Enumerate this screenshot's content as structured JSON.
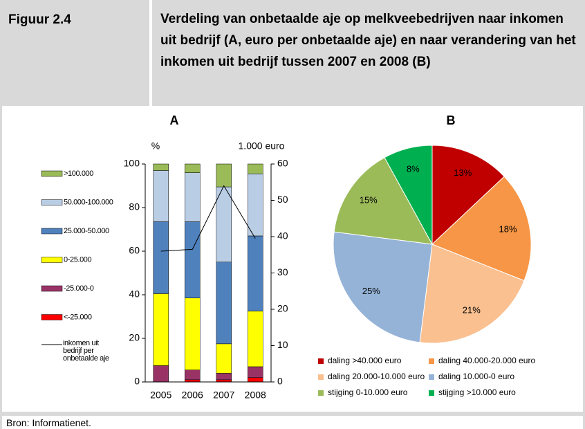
{
  "header": {
    "label": "Figuur 2.4",
    "title": "Verdeling van onbetaalde aje op melkveebedrijven naar inkomen uit bedrijf (A, euro per onbetaalde aje) en naar verandering van het inkomen uit bedrijf tussen 2007 en 2008 (B)"
  },
  "chart_data": [
    {
      "type": "bar",
      "stacked": true,
      "title": "A",
      "y_label": "%",
      "y2_label": "1.000 euro",
      "categories": [
        "2005",
        "2006",
        "2007",
        "2008"
      ],
      "ylim": [
        0,
        100
      ],
      "yticks": [
        0,
        20,
        40,
        60,
        80,
        100
      ],
      "y2lim": [
        0,
        60
      ],
      "y2ticks": [
        0,
        10,
        20,
        30,
        40,
        50,
        60
      ],
      "grid": false,
      "series": [
        {
          "name": "<-25.000",
          "color": "#ff0000",
          "values": [
            0,
            1,
            1,
            2
          ]
        },
        {
          "name": "-25.000-0",
          "color": "#993366",
          "values": [
            7.5,
            4.5,
            3,
            5
          ]
        },
        {
          "name": "0-25.000",
          "color": "#ffff00",
          "values": [
            33,
            33,
            13.5,
            25.5
          ]
        },
        {
          "name": "25.000-50.000",
          "color": "#4f81bd",
          "values": [
            33,
            35,
            37.5,
            34.5
          ]
        },
        {
          "name": "50.000-100.000",
          "color": "#b9cde5",
          "values": [
            23.5,
            22.5,
            34.5,
            28.5
          ]
        },
        {
          "name": ">100.000",
          "color": "#9bbb59",
          "values": [
            3,
            4,
            10.5,
            4.5
          ]
        },
        {
          "name": "inkomen uit bedrijf per onbetaalde aje",
          "color": "#000000",
          "type": "line",
          "axis": "y2",
          "values": [
            36,
            36.5,
            54,
            39.5
          ]
        }
      ]
    },
    {
      "type": "pie",
      "title": "B",
      "categories": [
        "daling >40.000 euro",
        "daling 40.000-20.000 euro",
        "daling 20.000-10.000 euro",
        "daling 10.000-0 euro",
        "stijging 0-10.000 euro",
        "stijging >10.000 euro"
      ],
      "values": [
        13,
        18,
        21,
        25,
        15,
        8
      ],
      "value_labels": [
        "13%",
        "18%",
        "21%",
        "25%",
        "15%",
        "8%"
      ],
      "colors": [
        "#c00000",
        "#f79646",
        "#fac090",
        "#95b3d7",
        "#9bbb59",
        "#00b050"
      ]
    }
  ],
  "footer": {
    "source": "Bron: Informatienet."
  }
}
